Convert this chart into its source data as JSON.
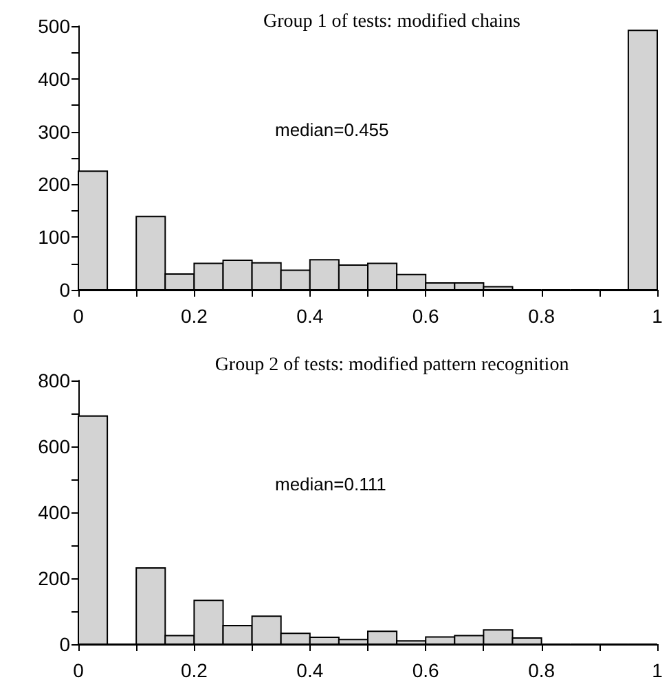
{
  "chart_data": [
    {
      "type": "histogram",
      "title": "Group 1 of tests: modified chains",
      "annotations": [
        "median=0.455"
      ],
      "color": "#d3d3d3",
      "bins": [
        0,
        0.05,
        0.1,
        0.15,
        0.2,
        0.25,
        0.3,
        0.35,
        0.4,
        0.45,
        0.5,
        0.55,
        0.6,
        0.65,
        0.7,
        0.75,
        0.8,
        0.85,
        0.9,
        0.95,
        1
      ],
      "values": [
        225,
        0,
        139,
        30,
        50,
        56,
        51,
        37,
        57,
        47,
        50,
        29,
        13,
        13,
        6,
        0,
        0,
        0,
        0,
        492
      ],
      "xlim": [
        0,
        1
      ],
      "xticks": [
        0,
        {
          "value": 0.1,
          "label": null
        },
        0.2,
        {
          "value": 0.3,
          "label": null
        },
        0.4,
        {
          "value": 0.5,
          "label": null
        },
        0.6,
        {
          "value": 0.7,
          "label": null
        },
        0.8,
        {
          "value": 0.9,
          "label": null
        },
        1
      ],
      "ylim": [
        0,
        500
      ],
      "yticks": [
        0,
        {
          "value": 50,
          "label": null
        },
        100,
        {
          "value": 150,
          "label": null
        },
        200,
        {
          "value": 250,
          "label": null
        },
        300,
        {
          "value": 350,
          "label": null
        },
        400,
        {
          "value": 450,
          "label": null
        },
        500
      ],
      "grid": false
    },
    {
      "type": "histogram",
      "title": "Group 2 of tests: modified pattern recognition",
      "annotations": [
        "median=0.111"
      ],
      "color": "#d3d3d3",
      "bins": [
        0,
        0.05,
        0.1,
        0.15,
        0.2,
        0.25,
        0.3,
        0.35,
        0.4,
        0.45,
        0.5,
        0.55,
        0.6,
        0.65,
        0.7,
        0.75,
        0.8,
        0.85,
        0.9,
        0.95,
        1
      ],
      "values": [
        692,
        0,
        231,
        26,
        133,
        56,
        85,
        33,
        21,
        14,
        39,
        10,
        22,
        26,
        43,
        19,
        0,
        0,
        0,
        0
      ],
      "xlim": [
        0,
        1
      ],
      "xticks": [
        0,
        {
          "value": 0.1,
          "label": null
        },
        0.2,
        {
          "value": 0.3,
          "label": null
        },
        0.4,
        {
          "value": 0.5,
          "label": null
        },
        0.6,
        {
          "value": 0.7,
          "label": null
        },
        0.8,
        {
          "value": 0.9,
          "label": null
        },
        1
      ],
      "ylim": [
        0,
        800
      ],
      "yticks": [
        0,
        {
          "value": 100,
          "label": null
        },
        200,
        {
          "value": 300,
          "label": null
        },
        400,
        {
          "value": 500,
          "label": null
        },
        600,
        {
          "value": 700,
          "label": null
        },
        800
      ],
      "grid": false
    }
  ]
}
